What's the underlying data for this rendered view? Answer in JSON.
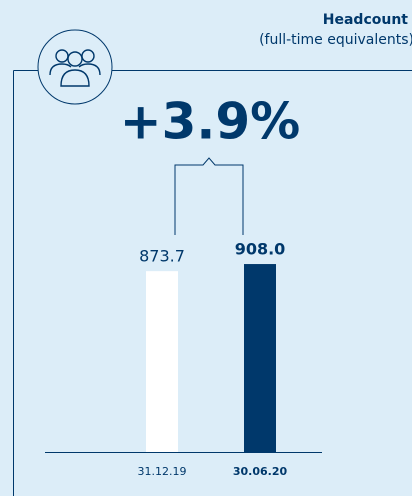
{
  "chart_data": {
    "type": "bar",
    "title": "Headcount",
    "subtitle": "(full-time equivalents)",
    "annotation": "+3.9%",
    "categories": [
      "31.12.19",
      "30.06.20"
    ],
    "values": [
      873.7,
      908.0
    ],
    "value_labels": [
      "873.7",
      "908.0"
    ],
    "colors": [
      "#ffffff",
      "#00386b"
    ],
    "ylim": [
      0,
      1000
    ]
  }
}
